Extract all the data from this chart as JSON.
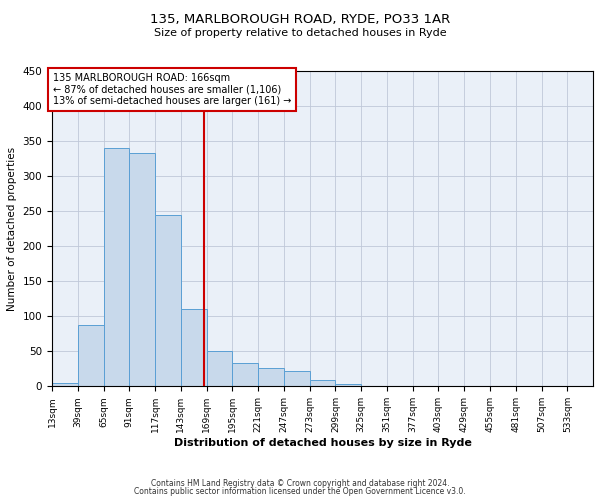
{
  "title_line1": "135, MARLBOROUGH ROAD, RYDE, PO33 1AR",
  "title_line2": "Size of property relative to detached houses in Ryde",
  "xlabel": "Distribution of detached houses by size in Ryde",
  "ylabel": "Number of detached properties",
  "bin_labels": [
    "13sqm",
    "39sqm",
    "65sqm",
    "91sqm",
    "117sqm",
    "143sqm",
    "169sqm",
    "195sqm",
    "221sqm",
    "247sqm",
    "273sqm",
    "299sqm",
    "325sqm",
    "351sqm",
    "377sqm",
    "403sqm",
    "429sqm",
    "455sqm",
    "481sqm",
    "507sqm",
    "533sqm"
  ],
  "bin_edges": [
    13,
    39,
    65,
    91,
    117,
    143,
    169,
    195,
    221,
    247,
    273,
    299,
    325,
    351,
    377,
    403,
    429,
    455,
    481,
    507,
    533,
    559
  ],
  "bar_values": [
    5,
    88,
    340,
    333,
    245,
    110,
    50,
    33,
    26,
    22,
    9,
    3,
    1,
    1,
    1,
    0,
    0,
    1,
    0,
    1,
    0
  ],
  "bar_facecolor": "#c8d9eb",
  "bar_edgecolor": "#5a9fd4",
  "grid_color": "#c0c8d8",
  "bg_color": "#eaf0f8",
  "property_line_x": 166,
  "property_line_color": "#cc0000",
  "annotation_line1": "135 MARLBOROUGH ROAD: 166sqm",
  "annotation_line2": "← 87% of detached houses are smaller (1,106)",
  "annotation_line3": "13% of semi-detached houses are larger (161) →",
  "annotation_box_edgecolor": "#cc0000",
  "ylim": [
    0,
    450
  ],
  "footer_line1": "Contains HM Land Registry data © Crown copyright and database right 2024.",
  "footer_line2": "Contains public sector information licensed under the Open Government Licence v3.0."
}
